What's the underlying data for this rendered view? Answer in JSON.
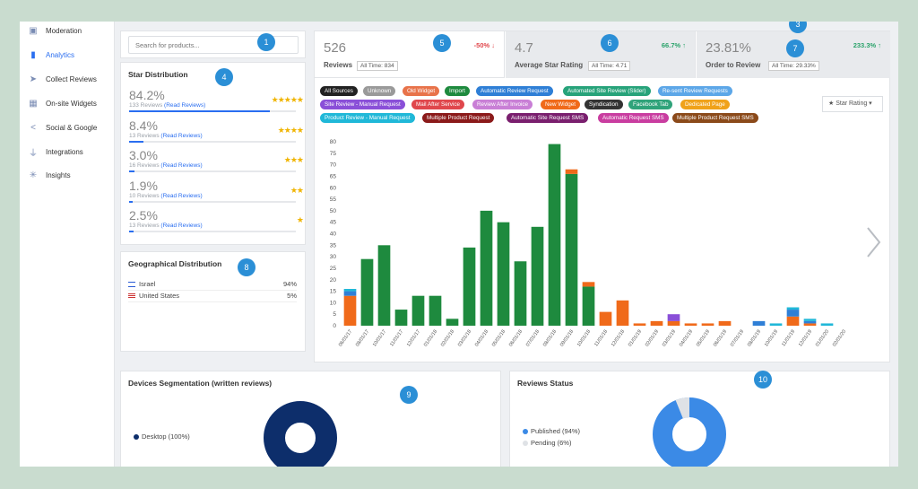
{
  "sidebar": {
    "items": [
      {
        "label": "Moderation",
        "icon": "moderation-icon",
        "active": false
      },
      {
        "label": "Analytics",
        "icon": "bar-chart-icon",
        "active": true
      },
      {
        "label": "Collect Reviews",
        "icon": "send-icon",
        "active": false
      },
      {
        "label": "On-site Widgets",
        "icon": "widgets-icon",
        "active": false
      },
      {
        "label": "Social & Google",
        "icon": "share-icon",
        "active": false
      },
      {
        "label": "Integrations",
        "icon": "plug-icon",
        "active": false
      },
      {
        "label": "Insights",
        "icon": "insights-icon",
        "active": false
      }
    ]
  },
  "search": {
    "placeholder": "Search for products..."
  },
  "star_distribution": {
    "title": "Star Distribution",
    "rows": [
      {
        "pct": "84.2%",
        "reviews": "133 Reviews",
        "link": "(Read Reviews)",
        "stars": "★★★★★",
        "fill": 0.842
      },
      {
        "pct": "8.4%",
        "reviews": "13 Reviews",
        "link": "(Read Reviews)",
        "stars": "★★★★",
        "fill": 0.084
      },
      {
        "pct": "3.0%",
        "reviews": "16 Reviews",
        "link": "(Read Reviews)",
        "stars": "★★★",
        "fill": 0.03
      },
      {
        "pct": "1.9%",
        "reviews": "10 Reviews",
        "link": "(Read Reviews)",
        "stars": "★★",
        "fill": 0.019
      },
      {
        "pct": "2.5%",
        "reviews": "13 Reviews",
        "link": "(Read Reviews)",
        "stars": "★",
        "fill": 0.025
      }
    ]
  },
  "geo": {
    "title": "Geographical Distribution",
    "rows": [
      {
        "country": "Israel",
        "pct": "94%"
      },
      {
        "country": "United States",
        "pct": "5%"
      }
    ]
  },
  "kpis": [
    {
      "value": "526",
      "label": "Reviews",
      "alltime": "All Time: 834",
      "change": "-50% ↓",
      "change_color": "#e0474c"
    },
    {
      "value": "4.7",
      "label": "Average Star Rating",
      "alltime": "All Time: 4.71",
      "change": "66.7% ↑",
      "change_color": "#2ba36b"
    },
    {
      "value": "23.81%",
      "label": "Order to Review",
      "alltime": "All Time: 29.33%",
      "change": "233.3% ↑",
      "change_color": "#2ba36b"
    }
  ],
  "badges": [
    "1",
    "3",
    "4",
    "5",
    "6",
    "7",
    "8",
    "9",
    "10"
  ],
  "sources": [
    {
      "label": "All Sources",
      "color": "#222222"
    },
    {
      "label": "Unknown",
      "color": "#9a9a9a"
    },
    {
      "label": "Old Widget",
      "color": "#e8734a"
    },
    {
      "label": "Import",
      "color": "#1e8a3e"
    },
    {
      "label": "Automatic Review Request",
      "color": "#2f7fd6"
    },
    {
      "label": "Automated Site Review (Slider)",
      "color": "#27a37a"
    },
    {
      "label": "Re-sent Review Requests",
      "color": "#5da7e8"
    },
    {
      "label": "Site Review - Manual Request",
      "color": "#8a4fd8"
    },
    {
      "label": "Mail After Service",
      "color": "#e0474c"
    },
    {
      "label": "Review After Invoice",
      "color": "#c97fd6"
    },
    {
      "label": "New Widget",
      "color": "#f06a1a"
    },
    {
      "label": "Syndication",
      "color": "#333333"
    },
    {
      "label": "Facebook Tab",
      "color": "#2fa37a"
    },
    {
      "label": "Dedicated Page",
      "color": "#f0a21a"
    },
    {
      "label": "Product Review - Manual Request",
      "color": "#20b8d8"
    },
    {
      "label": "Multiple Product Request",
      "color": "#8b1a1a"
    },
    {
      "label": "Automatic Site Request SMS",
      "color": "#7a1f6e"
    },
    {
      "label": "Automatic Request SMS",
      "color": "#c93da0"
    },
    {
      "label": "Multiple Product Request SMS",
      "color": "#8b4a1a"
    }
  ],
  "rating_dropdown": {
    "label": "★ Star Rating ▾"
  },
  "chart_data": {
    "type": "bar",
    "stacked": true,
    "categories": [
      "06/01/17",
      "08/01/17",
      "10/01/17",
      "11/01/17",
      "12/01/17",
      "01/01/18",
      "02/01/18",
      "03/01/18",
      "04/01/18",
      "05/01/18",
      "06/01/18",
      "07/01/18",
      "08/01/18",
      "09/01/18",
      "10/01/18",
      "11/01/18",
      "12/01/18",
      "01/01/19",
      "02/01/19",
      "03/01/19",
      "04/01/19",
      "05/01/19",
      "06/01/19",
      "07/01/19",
      "08/01/19",
      "10/01/19",
      "11/01/19",
      "12/01/19",
      "01/01/20",
      "02/01/20"
    ],
    "ylim": [
      0,
      80
    ],
    "yticks": [
      0,
      5,
      10,
      15,
      20,
      25,
      30,
      35,
      40,
      45,
      50,
      55,
      60,
      65,
      70,
      75,
      80
    ],
    "series": [
      {
        "name": "Import",
        "color": "#1e8a3e",
        "values": [
          0,
          29,
          35,
          7,
          13,
          13,
          3,
          34,
          50,
          45,
          28,
          43,
          79,
          66,
          17,
          0,
          0,
          0,
          0,
          0,
          0,
          0,
          0,
          0,
          0,
          0,
          0,
          0,
          0,
          0
        ]
      },
      {
        "name": "New Widget",
        "color": "#f06a1a",
        "values": [
          13,
          0,
          0,
          0,
          0,
          0,
          0,
          0,
          0,
          0,
          0,
          0,
          0,
          2,
          2,
          6,
          11,
          1,
          2,
          2,
          1,
          1,
          2,
          0,
          0,
          0,
          4,
          1,
          0,
          0
        ]
      },
      {
        "name": "Automatic Review Request",
        "color": "#2f7fd6",
        "values": [
          2,
          0,
          0,
          0,
          0,
          0,
          0,
          0,
          0,
          0,
          0,
          0,
          0,
          0,
          0,
          0,
          0,
          0,
          0,
          0,
          0,
          0,
          0,
          0,
          2,
          0,
          3,
          1,
          0,
          0
        ]
      },
      {
        "name": "Site Review - Manual Request",
        "color": "#8a4fd8",
        "values": [
          0,
          0,
          0,
          0,
          0,
          0,
          0,
          0,
          0,
          0,
          0,
          0,
          0,
          0,
          0,
          0,
          0,
          0,
          0,
          3,
          0,
          0,
          0,
          0,
          0,
          0,
          0,
          0,
          0,
          0
        ]
      },
      {
        "name": "Product Review - Manual Request",
        "color": "#20b8d8",
        "values": [
          1,
          0,
          0,
          0,
          0,
          0,
          0,
          0,
          0,
          0,
          0,
          0,
          0,
          0,
          0,
          0,
          0,
          0,
          0,
          0,
          0,
          0,
          0,
          0,
          0,
          1,
          1,
          1,
          1,
          0
        ]
      }
    ]
  },
  "devices": {
    "title": "Devices Segmentation (written reviews)",
    "legend": [
      {
        "label": "Desktop (100%)",
        "color": "#0d2e6b"
      }
    ]
  },
  "reviews_status": {
    "title": "Reviews Status",
    "legend": [
      {
        "label": "Published (94%)",
        "color": "#3b8ae6"
      },
      {
        "label": "Pending (6%)",
        "color": "#dfe2e6"
      }
    ]
  }
}
